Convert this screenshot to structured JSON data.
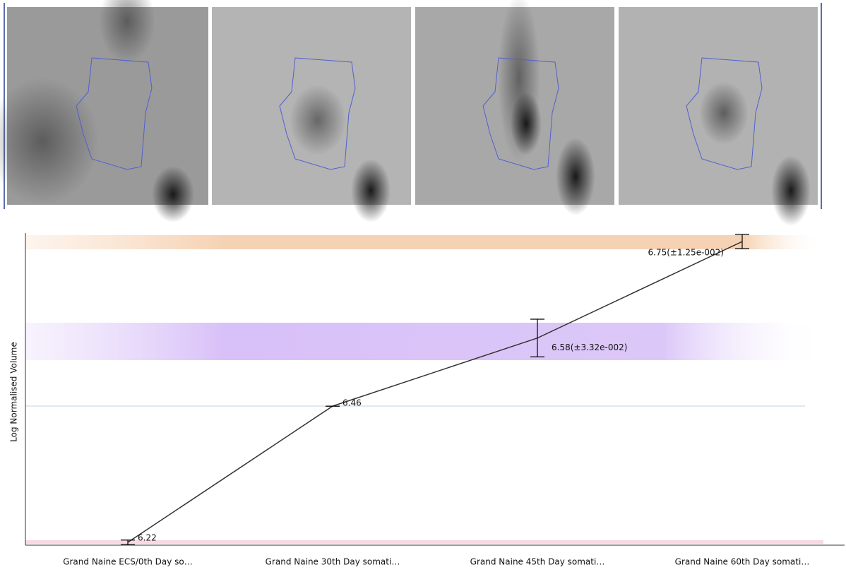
{
  "chart_data": {
    "type": "line",
    "y_label": "Log Normalised Volume",
    "categories": [
      "Grand Naine ECS/0th Day so…",
      "Grand Naine 30th Day somati…",
      "Grand Naine 45th Day somati…",
      "Grand Naine 60th Day somati…"
    ],
    "values": [
      6.22,
      6.46,
      6.58,
      6.75
    ],
    "errors": [
      0.004,
      0,
      0.0332,
      0.0125
    ],
    "value_labels": [
      "6.22",
      "6.46",
      "6.58(±3.32e-002)",
      "6.75(±1.25e-002)"
    ],
    "color": "#333333",
    "ylim": [
      6.215,
      6.765
    ]
  }
}
